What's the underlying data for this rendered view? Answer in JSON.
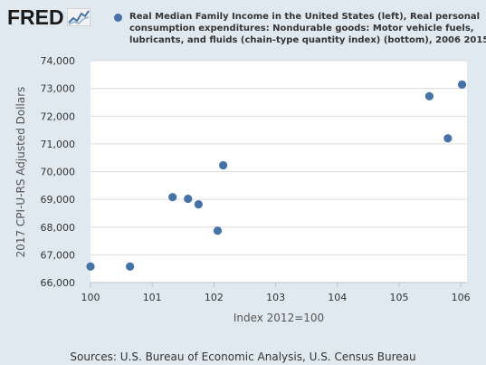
{
  "brand": {
    "logo_text": "FRED",
    "logo_icon": "line-graph-icon"
  },
  "colors": {
    "background": "#e1e9f0",
    "plot_background": "#ffffff",
    "grid": "#dcdcdc",
    "marker": "#4572a7"
  },
  "legend": {
    "text": "Real Median Family Income in the United States (left), Real personal consumption expenditures: Nondurable goods: Motor vehicle fuels, lubricants, and fluids (chain-type quantity index) (bottom), 2006 2015"
  },
  "footer": {
    "sources": "Sources: U.S. Bureau of Economic Analysis, U.S. Census Bureau"
  },
  "chart_data": {
    "type": "scatter",
    "title": "",
    "xlabel": "Index 2012=100",
    "ylabel": "2017 CPI-U-RS Adjusted Dollars",
    "xlim": [
      100,
      106.1
    ],
    "ylim": [
      66000,
      74000
    ],
    "x_ticks": [
      100,
      101,
      102,
      103,
      104,
      105,
      106
    ],
    "y_ticks": [
      66000,
      67000,
      68000,
      69000,
      70000,
      71000,
      72000,
      73000,
      74000
    ],
    "x_tick_labels": [
      "100",
      "101",
      "102",
      "103",
      "104",
      "105",
      "106"
    ],
    "y_tick_labels": [
      "66,000",
      "67,000",
      "68,000",
      "69,000",
      "70,000",
      "71,000",
      "72,000",
      "73,000",
      "74,000"
    ],
    "grid": "horizontal",
    "legend_position": "top",
    "series": [
      {
        "points": [
          {
            "x": 100.0,
            "y": 66580
          },
          {
            "x": 100.64,
            "y": 66580
          },
          {
            "x": 101.33,
            "y": 69080
          },
          {
            "x": 101.58,
            "y": 69020
          },
          {
            "x": 101.75,
            "y": 68820
          },
          {
            "x": 102.06,
            "y": 67870
          },
          {
            "x": 102.15,
            "y": 70230
          },
          {
            "x": 105.49,
            "y": 72720
          },
          {
            "x": 105.79,
            "y": 71200
          },
          {
            "x": 106.02,
            "y": 73140
          }
        ]
      }
    ]
  }
}
